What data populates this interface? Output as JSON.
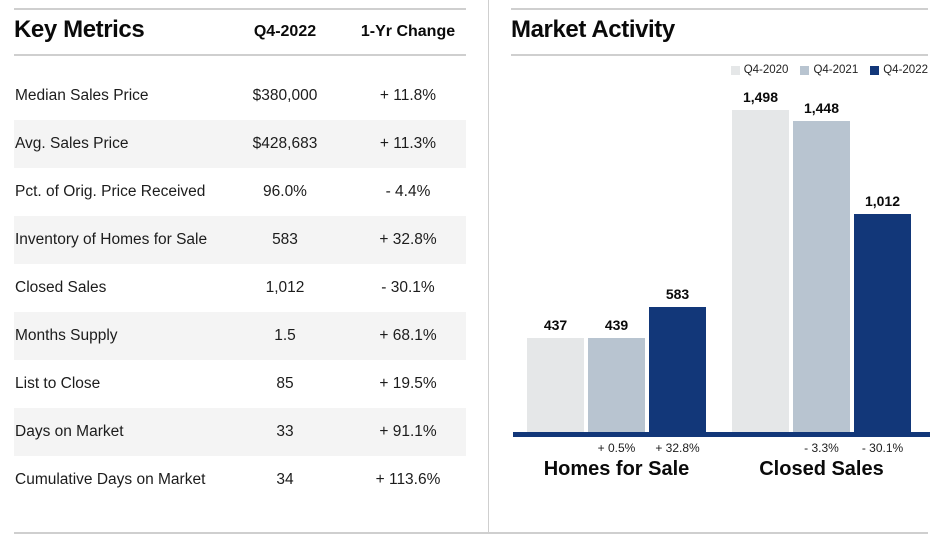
{
  "key_metrics": {
    "title": "Key Metrics",
    "columns": {
      "value": "Q4-2022",
      "change": "1-Yr Change"
    },
    "rows": [
      {
        "label": "Median Sales Price",
        "value": "$380,000",
        "change": "+ 11.8%"
      },
      {
        "label": "Avg. Sales Price",
        "value": "$428,683",
        "change": "+ 11.3%"
      },
      {
        "label": "Pct. of Orig. Price Received",
        "value": "96.0%",
        "change": "- 4.4%"
      },
      {
        "label": "Inventory of Homes for Sale",
        "value": "583",
        "change": "+ 32.8%"
      },
      {
        "label": "Closed Sales",
        "value": "1,012",
        "change": "- 30.1%"
      },
      {
        "label": "Months Supply",
        "value": "1.5",
        "change": "+ 68.1%"
      },
      {
        "label": "List to Close",
        "value": "85",
        "change": "+ 19.5%"
      },
      {
        "label": "Days on Market",
        "value": "33",
        "change": "+ 91.1%"
      },
      {
        "label": "Cumulative Days on Market",
        "value": "34",
        "change": "+ 113.6%"
      }
    ]
  },
  "chart_data": {
    "type": "bar",
    "title": "Market Activity",
    "categories": [
      "Homes for Sale",
      "Closed Sales"
    ],
    "series": [
      {
        "name": "Q4-2020",
        "color": "#e5e7e8",
        "values": [
          437,
          1498
        ]
      },
      {
        "name": "Q4-2021",
        "color": "#b8c4d0",
        "values": [
          439,
          1448
        ]
      },
      {
        "name": "Q4-2022",
        "color": "#123779",
        "values": [
          583,
          1012
        ]
      }
    ],
    "value_labels": [
      [
        "437",
        "439",
        "583"
      ],
      [
        "1,498",
        "1,448",
        "1,012"
      ]
    ],
    "pct_changes": [
      [
        "",
        "+ 0.5%",
        "+ 32.8%"
      ],
      [
        "",
        "- 3.3%",
        "- 30.1%"
      ]
    ],
    "ylim": [
      0,
      1600
    ],
    "grid": false,
    "legend_position": "top-right",
    "axis_color": "#123779"
  }
}
